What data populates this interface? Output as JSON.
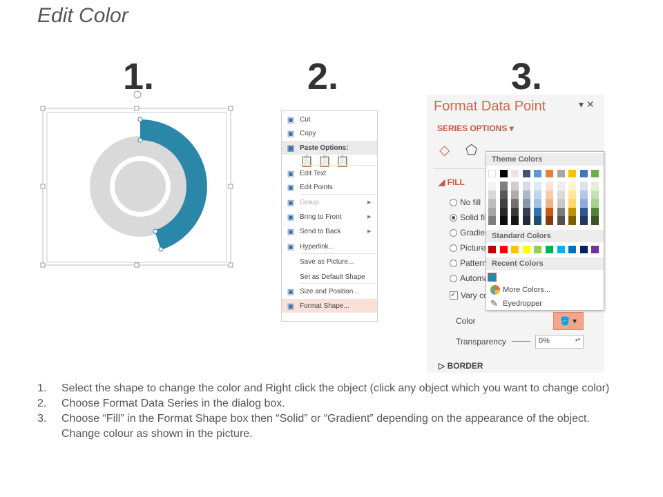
{
  "title": "Edit Color",
  "steps": [
    "1.",
    "2.",
    "3."
  ],
  "donut": {
    "accent": "#2b87a8",
    "ring": "#d9d9d9"
  },
  "context_menu": {
    "items": [
      {
        "label": "Cut",
        "icon": "scissors-icon"
      },
      {
        "label": "Copy",
        "icon": "copy-icon"
      },
      {
        "label": "Paste Options:",
        "icon": "paste-icon",
        "header": true
      },
      {
        "label": "Edit Text",
        "icon": "edit-text-icon"
      },
      {
        "label": "Edit Points",
        "icon": "edit-points-icon"
      },
      {
        "label": "Group",
        "icon": "group-icon",
        "disabled": true,
        "submenu": true
      },
      {
        "label": "Bring to Front",
        "icon": "bring-front-icon",
        "submenu": true
      },
      {
        "label": "Send to Back",
        "icon": "send-back-icon",
        "submenu": true
      },
      {
        "label": "Hyperlink...",
        "icon": "hyperlink-icon"
      },
      {
        "label": "Save as Picture...",
        "icon": ""
      },
      {
        "label": "Set as Default Shape",
        "icon": ""
      },
      {
        "label": "Size and Position...",
        "icon": "size-position-icon"
      },
      {
        "label": "Format Shape...",
        "icon": "format-shape-icon",
        "highlighted": true
      }
    ]
  },
  "pane": {
    "title": "Format Data Point",
    "series_options": "SERIES OPTIONS",
    "fill": "FILL",
    "fill_options": [
      "No fill",
      "Solid fill",
      "Gradient fill",
      "Picture or texture fill",
      "Pattern fill",
      "Automatic"
    ],
    "selected_fill": "Solid fill",
    "vary_colors": "Vary colors by point",
    "color_label": "Color",
    "transparency_label": "Transparency",
    "transparency_value": "0%",
    "border": "BORDER"
  },
  "color_picker": {
    "theme_label": "Theme Colors",
    "theme": [
      "#ffffff",
      "#000000",
      "#e7e6e6",
      "#44546a",
      "#5b9bd5",
      "#ed7d31",
      "#a5a5a5",
      "#ffc000",
      "#4472c4",
      "#70ad47"
    ],
    "shades": [
      [
        "#f2f2f2",
        "#7f7f7f",
        "#d0cece",
        "#d6dce5",
        "#deebf7",
        "#fbe5d6",
        "#ededed",
        "#fff2cc",
        "#dae3f3",
        "#e2f0d9"
      ],
      [
        "#d9d9d9",
        "#595959",
        "#aeabab",
        "#adb9ca",
        "#bdd7ee",
        "#f8cbad",
        "#dbdbdb",
        "#ffe699",
        "#b4c7e7",
        "#c5e0b4"
      ],
      [
        "#bfbfbf",
        "#404040",
        "#757171",
        "#8497b0",
        "#9dc3e6",
        "#f4b183",
        "#c9c9c9",
        "#ffd966",
        "#8faadc",
        "#a9d18e"
      ],
      [
        "#a6a6a6",
        "#262626",
        "#3a3838",
        "#333f50",
        "#2e75b6",
        "#c55a11",
        "#7b7b7b",
        "#bf9000",
        "#2f5597",
        "#538135"
      ],
      [
        "#7f7f7f",
        "#0d0d0d",
        "#171616",
        "#222a35",
        "#1f4e79",
        "#843c0c",
        "#525252",
        "#7f6000",
        "#203864",
        "#385723"
      ]
    ],
    "standard_label": "Standard Colors",
    "standard": [
      "#c00000",
      "#ff0000",
      "#ffc000",
      "#ffff00",
      "#92d050",
      "#00b050",
      "#00b0f0",
      "#0070c0",
      "#002060",
      "#7030a0"
    ],
    "recent_label": "Recent Colors",
    "recent": [
      "#2b87a8"
    ],
    "more_colors": "More Colors...",
    "eyedropper": "Eyedropper"
  },
  "instructions": [
    {
      "n": "1.",
      "text": "Select the shape to change the color and Right click the object (click any object which you want to change color)"
    },
    {
      "n": "2.",
      "text": "Choose Format Data Series in the dialog box."
    },
    {
      "n": "3.",
      "text": "Choose “Fill” in the Format Shape box then “Solid” or “Gradient” depending on the appearance of the object. Change colour as shown in the picture."
    }
  ]
}
